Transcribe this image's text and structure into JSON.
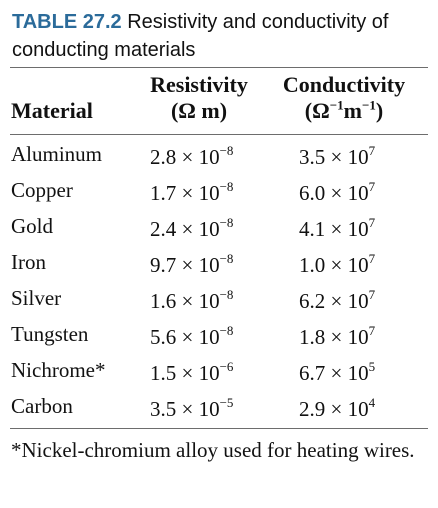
{
  "caption": {
    "label": "TABLE 27.2",
    "text": "Resistivity and conductivity of conducting materials"
  },
  "table": {
    "headers": {
      "material": "Material",
      "resistivity": "Resistivity",
      "resistivity_unit_open": "(",
      "resistivity_unit_omega": "Ω",
      "resistivity_unit_m": " m",
      "resistivity_unit_close": ")",
      "conductivity": "Conductivity",
      "conductivity_unit_open": "(",
      "conductivity_unit_omega": "Ω",
      "conductivity_unit_omega_exp": "−1",
      "conductivity_unit_m": "m",
      "conductivity_unit_m_exp": "−1",
      "conductivity_unit_close": ")"
    },
    "rows": [
      {
        "material": "Aluminum",
        "res_mantissa": "2.8 × 10",
        "res_exp": "−8",
        "con_mantissa": "3.5 × 10",
        "con_exp": "7"
      },
      {
        "material": "Copper",
        "res_mantissa": "1.7 × 10",
        "res_exp": "−8",
        "con_mantissa": "6.0 × 10",
        "con_exp": "7"
      },
      {
        "material": "Gold",
        "res_mantissa": "2.4 × 10",
        "res_exp": "−8",
        "con_mantissa": "4.1 × 10",
        "con_exp": "7"
      },
      {
        "material": "Iron",
        "res_mantissa": "9.7 × 10",
        "res_exp": "−8",
        "con_mantissa": "1.0 × 10",
        "con_exp": "7"
      },
      {
        "material": "Silver",
        "res_mantissa": "1.6 × 10",
        "res_exp": "−8",
        "con_mantissa": "6.2 × 10",
        "con_exp": "7"
      },
      {
        "material": "Tungsten",
        "res_mantissa": "5.6 × 10",
        "res_exp": "−8",
        "con_mantissa": "1.8 × 10",
        "con_exp": "7"
      },
      {
        "material": "Nichrome*",
        "res_mantissa": "1.5 × 10",
        "res_exp": "−6",
        "con_mantissa": "6.7 × 10",
        "con_exp": "5"
      },
      {
        "material": "Carbon",
        "res_mantissa": "3.5 × 10",
        "res_exp": "−5",
        "con_mantissa": "2.9 × 10",
        "con_exp": "4"
      }
    ]
  },
  "footnote": "*Nickel-chromium alloy used for heating wires.",
  "colors": {
    "caption_label": "#2b6b9a",
    "text": "#111111",
    "rule": "#6d6d6d"
  }
}
